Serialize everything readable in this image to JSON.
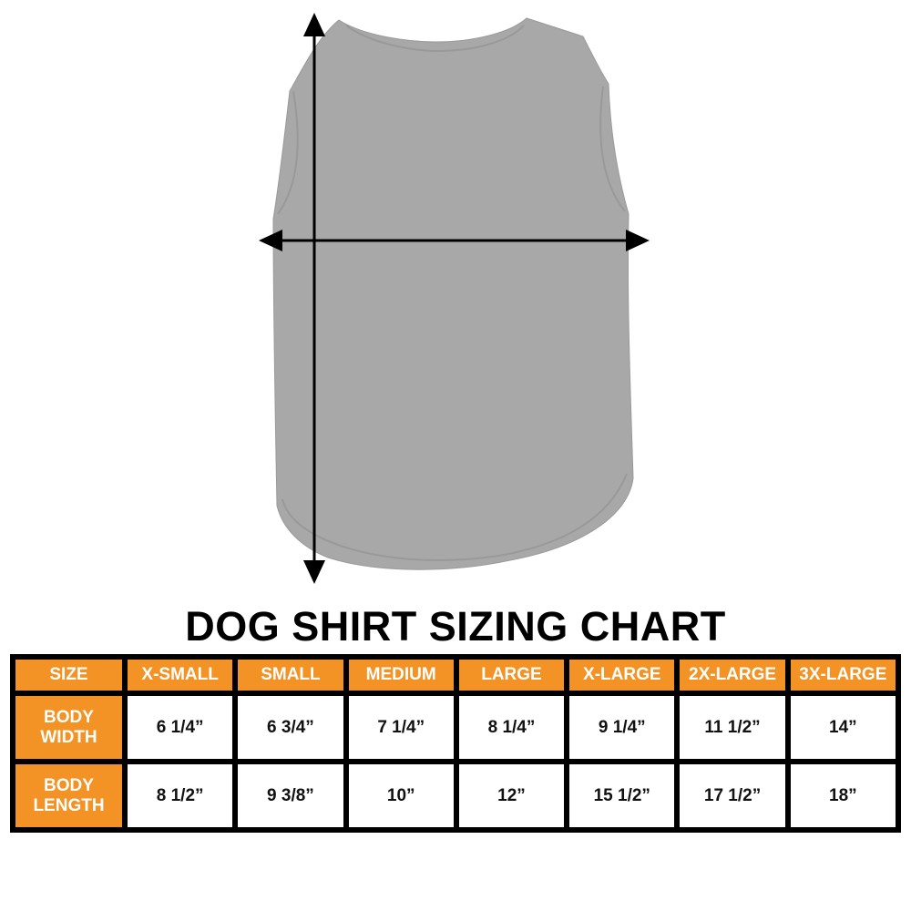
{
  "title": "DOG SHIRT SIZING CHART",
  "colors": {
    "header": "#f39325",
    "border": "#000000",
    "shirt": "#a8a8a8"
  },
  "image": {
    "subject": "gray dog shirt",
    "arrows": [
      "vertical-length-arrow",
      "horizontal-width-arrow"
    ]
  },
  "table": {
    "headers": [
      "SIZE",
      "X-SMALL",
      "SMALL",
      "MEDIUM",
      "LARGE",
      "X-LARGE",
      "2X-LARGE",
      "3X-LARGE"
    ],
    "rows": [
      {
        "label_line1": "BODY",
        "label_line2": "WIDTH",
        "values": [
          "6 1/4”",
          "6 3/4”",
          "7 1/4”",
          "8 1/4”",
          "9 1/4”",
          "11 1/2”",
          "14”"
        ]
      },
      {
        "label_line1": "BODY",
        "label_line2": "LENGTH",
        "values": [
          "8 1/2”",
          "9 3/8”",
          "10”",
          "12”",
          "15 1/2”",
          "17 1/2”",
          "18”"
        ]
      }
    ]
  }
}
